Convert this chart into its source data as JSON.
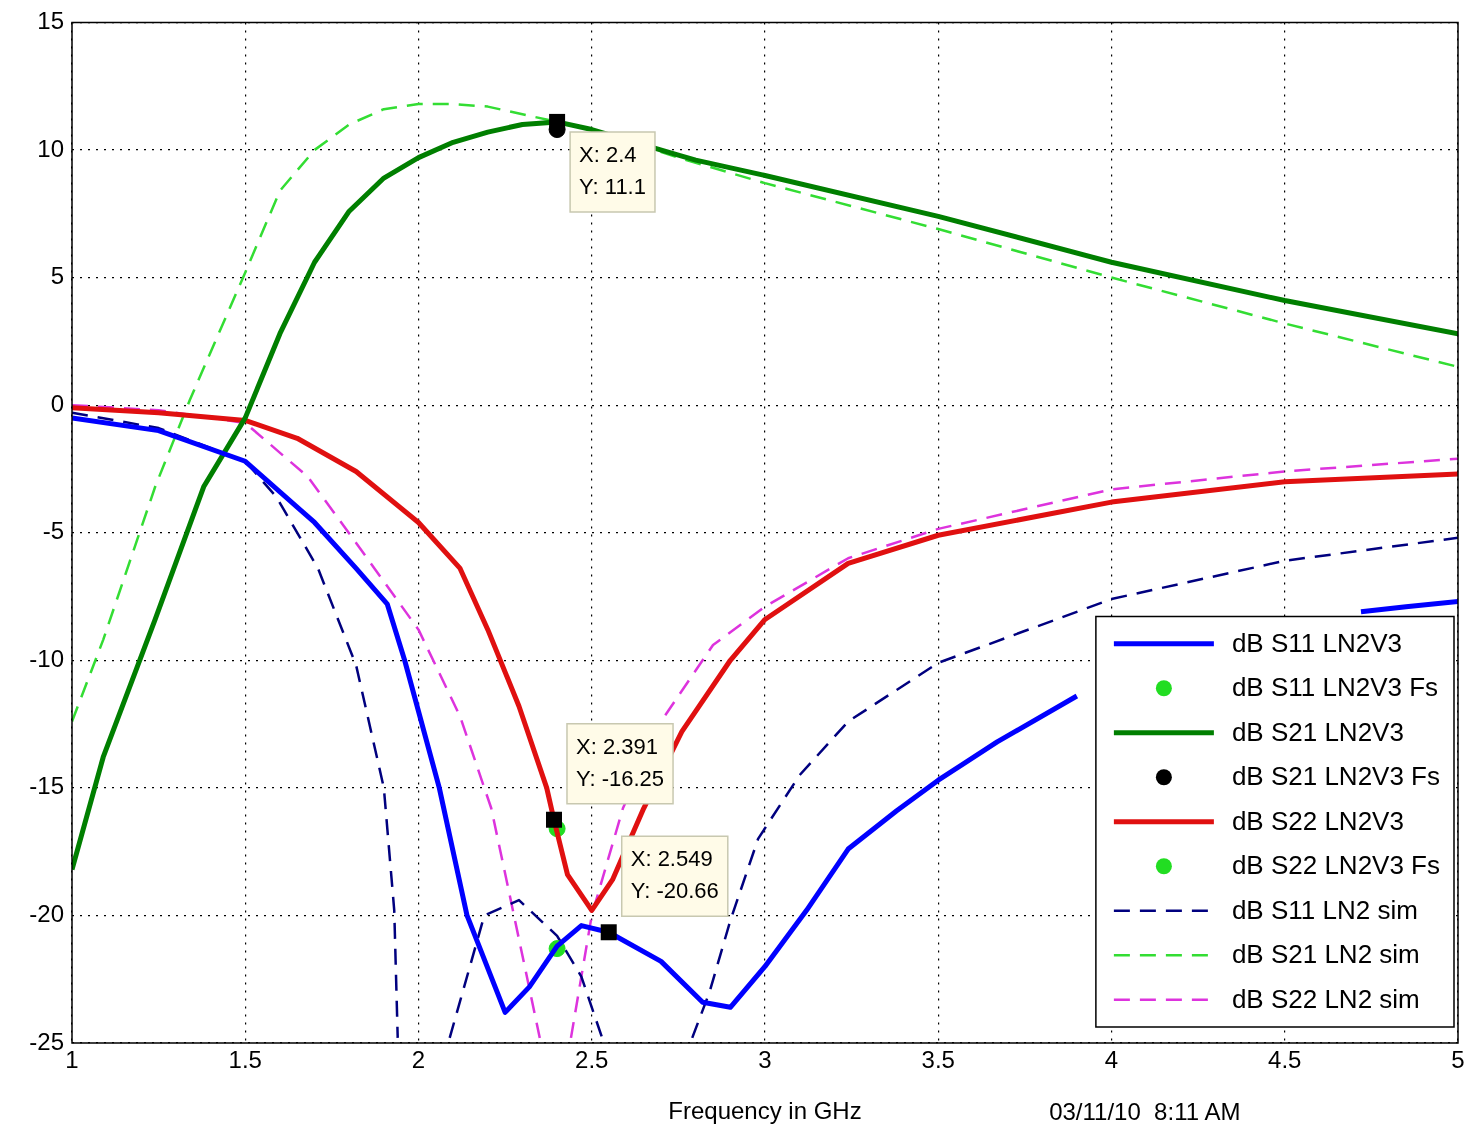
{
  "chart_data": {
    "type": "line",
    "xlabel": "Frequency in GHz",
    "xlim": [
      1,
      5
    ],
    "xticks": [
      1,
      1.5,
      2,
      2.5,
      3,
      3.5,
      4,
      4.5,
      5
    ],
    "ylim": [
      -25,
      15
    ],
    "yticks": [
      -25,
      -20,
      -15,
      -10,
      -5,
      0,
      5,
      10,
      15
    ],
    "grid": true,
    "legend": "bottom right",
    "series": [
      {
        "name": "dB S11 LN2V3",
        "color": "#0000ff",
        "line_style": "solid",
        "x": [
          1,
          1.25,
          1.5,
          1.7,
          1.82,
          1.91,
          1.96,
          2.06,
          2.14,
          2.25,
          2.32,
          2.4,
          2.47,
          2.549,
          2.7,
          2.82,
          2.9,
          3.0,
          3.12,
          3.24,
          3.38,
          3.5,
          3.67,
          3.9,
          4.2,
          4.72,
          4.85,
          5.0
        ],
        "values": [
          -0.5,
          -1.0,
          -2.2,
          -4.6,
          -6.4,
          -7.8,
          -10,
          -15,
          -20,
          -23.8,
          -22.8,
          -21.2,
          -20.4,
          -20.66,
          -21.8,
          -23.4,
          -23.6,
          -22,
          -19.8,
          -17.4,
          -15.9,
          -14.7,
          -13.2,
          -11.4,
          null,
          -8.1,
          -7.9,
          -7.7
        ]
      },
      {
        "name": "dB S11 LN2V3 Fs",
        "type": "scatter",
        "color": "#22dd22",
        "marker": "circle",
        "x": [
          2.4
        ],
        "values": [
          -21.3
        ]
      },
      {
        "name": "dB S21 LN2V3",
        "color": "#007f00",
        "line_style": "solid",
        "x": [
          1,
          1.09,
          1.24,
          1.38,
          1.5,
          1.6,
          1.7,
          1.8,
          1.9,
          2.0,
          2.1,
          2.2,
          2.3,
          2.4,
          2.5,
          2.75,
          2.8,
          3.0,
          3.5,
          4.0,
          4.5,
          5.0
        ],
        "values": [
          -18.2,
          -13.8,
          -8.4,
          -3.2,
          -0.5,
          2.8,
          5.6,
          7.6,
          8.9,
          9.7,
          10.3,
          10.7,
          11.0,
          11.1,
          10.8,
          9.8,
          9.6,
          9.0,
          7.4,
          5.6,
          4.1,
          2.8
        ]
      },
      {
        "name": "dB S21 LN2V3 Fs",
        "type": "scatter",
        "color": "#000000",
        "marker": "circle",
        "x": [
          2.4
        ],
        "values": [
          10.8
        ]
      },
      {
        "name": "dB S22 LN2V3",
        "color": "#e01010",
        "line_style": "solid",
        "x": [
          1,
          1.25,
          1.5,
          1.65,
          1.82,
          2.0,
          2.12,
          2.2,
          2.29,
          2.37,
          2.391,
          2.43,
          2.5,
          2.56,
          2.65,
          2.76,
          2.9,
          3.0,
          3.24,
          3.5,
          4.0,
          4.5,
          5.0
        ],
        "values": [
          -0.1,
          -0.3,
          -0.6,
          -1.3,
          -2.6,
          -4.6,
          -6.4,
          -8.8,
          -11.8,
          -15.0,
          -16.25,
          -18.4,
          -19.8,
          -18.6,
          -15.8,
          -12.8,
          -10.0,
          -8.4,
          -6.2,
          -5.1,
          -3.8,
          -3.0,
          -2.7
        ]
      },
      {
        "name": "dB S22 LN2V3 Fs",
        "type": "scatter",
        "color": "#22dd22",
        "marker": "circle",
        "x": [
          2.4
        ],
        "values": [
          -16.6
        ]
      },
      {
        "name": "dB S11 LN2 sim",
        "color": "#00007f",
        "line_style": "dashed",
        "x": [
          1,
          1.25,
          1.5,
          1.59,
          1.71,
          1.82,
          1.9,
          1.93,
          1.94,
          2.0,
          2.09,
          2.19,
          2.29,
          2.4,
          2.47,
          2.53,
          2.65,
          2.79,
          2.84,
          2.9,
          2.98,
          3.1,
          3.24,
          3.5,
          4.0,
          4.5,
          5.0
        ],
        "values": [
          -0.3,
          -0.9,
          -2.2,
          -3.6,
          -6.4,
          -10.2,
          -15,
          -19.8,
          -24.8,
          null,
          -24.8,
          -20,
          -19.4,
          -20.8,
          -22.4,
          -24.8,
          null,
          -24.8,
          -23,
          -20.2,
          -17,
          -14.5,
          -12.4,
          -10.1,
          -7.6,
          -6.1,
          -5.2
        ]
      },
      {
        "name": "dB S21 LN2 sim",
        "color": "#33dd33",
        "line_style": "dashed",
        "x": [
          1,
          1.09,
          1.24,
          1.34,
          1.5,
          1.6,
          1.7,
          1.8,
          1.9,
          2.0,
          2.1,
          2.2,
          2.3,
          2.4,
          2.5,
          2.75,
          2.8,
          3.0,
          3.5,
          4.0,
          4.5,
          5.0
        ],
        "values": [
          -12.4,
          -9.2,
          -3.2,
          0.2,
          5.2,
          8.4,
          10.0,
          11.0,
          11.6,
          11.8,
          11.8,
          11.7,
          11.4,
          11.1,
          10.8,
          9.7,
          9.5,
          8.7,
          6.9,
          5.0,
          3.2,
          1.5
        ]
      },
      {
        "name": "dB S22 LN2 sim",
        "color": "#dd33dd",
        "line_style": "dashed",
        "x": [
          1,
          1.25,
          1.5,
          1.68,
          1.82,
          2.0,
          2.12,
          2.21,
          2.26,
          2.35,
          2.4,
          2.44,
          2.5,
          2.59,
          2.71,
          2.85,
          3.0,
          3.24,
          3.5,
          4.0,
          4.5,
          5.0
        ],
        "values": [
          0,
          -0.2,
          -0.7,
          -2.8,
          -5.4,
          -8.8,
          -12.2,
          -15.8,
          -19,
          -24.8,
          null,
          -24.8,
          -20,
          -15.8,
          -12.2,
          -9.4,
          -7.9,
          -6.0,
          -4.85,
          -3.3,
          -2.6,
          -2.1
        ]
      }
    ],
    "annotations": [
      {
        "text": "X: 2.4\nY: 11.1",
        "x": 2.4,
        "y": 11.1
      },
      {
        "text": "X: 2.391\nY: -16.25",
        "x": 2.391,
        "y": -16.25
      },
      {
        "text": "X: 2.549\nY: -20.66",
        "x": 2.549,
        "y": -20.66
      },
      "03/11/10  8:11 AM"
    ]
  }
}
